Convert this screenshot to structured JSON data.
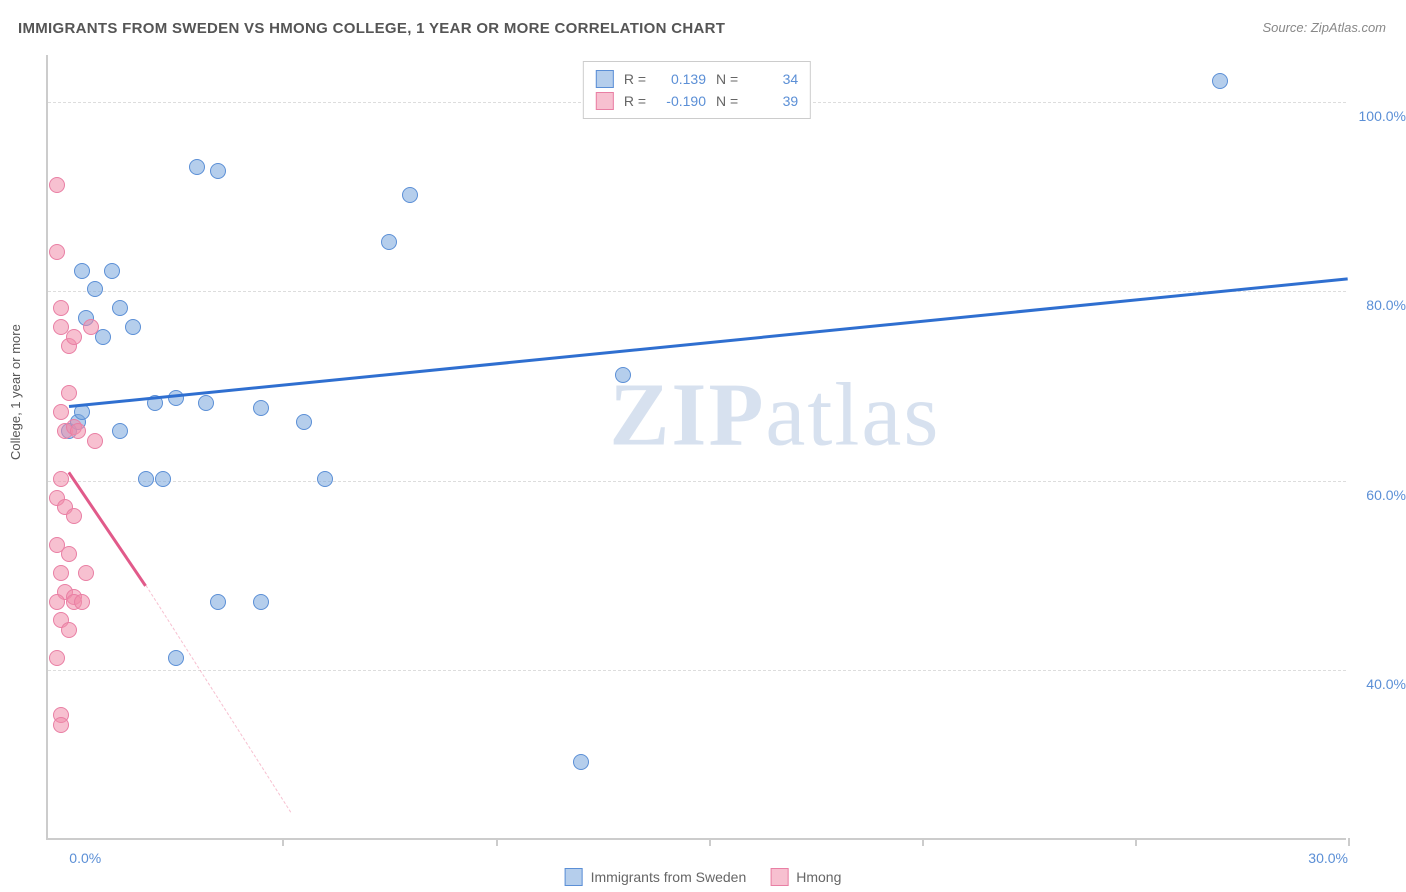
{
  "title": "IMMIGRANTS FROM SWEDEN VS HMONG COLLEGE, 1 YEAR OR MORE CORRELATION CHART",
  "source": "Source: ZipAtlas.com",
  "ylabel": "College, 1 year or more",
  "watermark_bold": "ZIP",
  "watermark_rest": "atlas",
  "chart": {
    "type": "scatter",
    "background_color": "#ffffff",
    "grid_color": "#dddddd",
    "axis_color": "#cccccc",
    "tick_label_color": "#5b8fd6",
    "xlim": [
      0,
      30
    ],
    "ylim": [
      25,
      105
    ],
    "x_visible_min": -0.5,
    "y_visible_min": 22,
    "y_visible_max": 105,
    "x_tick_step": 5,
    "y_ticks": [
      40,
      60,
      80,
      100
    ],
    "x_tick_labels": {
      "0": "0.0%",
      "30": "30.0%"
    },
    "y_tick_labels": {
      "40": "40.0%",
      "60": "60.0%",
      "80": "80.0%",
      "100": "100.0%"
    },
    "point_radius": 8,
    "point_border_width": 1,
    "series": [
      {
        "name": "Immigrants from Sweden",
        "fill": "rgba(120,165,220,0.55)",
        "stroke": "#5b8fd6",
        "line_color": "#2f6fd0",
        "line_width": 2.5,
        "R": "0.139",
        "N": "34",
        "trend": {
          "x1": 0,
          "y1": 68,
          "x2": 30,
          "y2": 81.5
        },
        "trend_dash": null,
        "points": [
          [
            0.0,
            65
          ],
          [
            0.2,
            66
          ],
          [
            0.3,
            82
          ],
          [
            0.3,
            67
          ],
          [
            0.4,
            77
          ],
          [
            0.6,
            80
          ],
          [
            0.8,
            75
          ],
          [
            1.0,
            82
          ],
          [
            1.2,
            78
          ],
          [
            1.2,
            65
          ],
          [
            1.5,
            76
          ],
          [
            3.0,
            93
          ],
          [
            3.5,
            92.5
          ],
          [
            2.0,
            68
          ],
          [
            2.5,
            68.5
          ],
          [
            3.2,
            68
          ],
          [
            1.8,
            60
          ],
          [
            2.2,
            60
          ],
          [
            3.5,
            47
          ],
          [
            4.5,
            47
          ],
          [
            2.5,
            41
          ],
          [
            4.5,
            67.5
          ],
          [
            5.5,
            66
          ],
          [
            6.0,
            60
          ],
          [
            7.5,
            85
          ],
          [
            8.0,
            90
          ],
          [
            12.0,
            30
          ],
          [
            13,
            71
          ],
          [
            27,
            102
          ]
        ]
      },
      {
        "name": "Hmong",
        "fill": "rgba(240,140,170,0.55)",
        "stroke": "#e97fa4",
        "line_color": "#e15a8a",
        "line_width": 2.5,
        "R": "-0.190",
        "N": "39",
        "trend": {
          "x1": 0,
          "y1": 61,
          "x2": 1.8,
          "y2": 49
        },
        "trend_dash": {
          "x1": 1.8,
          "y1": 49,
          "x2": 5.2,
          "y2": 25
        },
        "points": [
          [
            -0.3,
            91
          ],
          [
            -0.3,
            84
          ],
          [
            -0.2,
            78
          ],
          [
            -0.2,
            76
          ],
          [
            0.0,
            74
          ],
          [
            0.1,
            75
          ],
          [
            0.0,
            69
          ],
          [
            -0.2,
            67
          ],
          [
            -0.1,
            65
          ],
          [
            0.1,
            65.5
          ],
          [
            0.2,
            65
          ],
          [
            -0.2,
            60
          ],
          [
            -0.3,
            58
          ],
          [
            -0.1,
            57
          ],
          [
            0.1,
            56
          ],
          [
            -0.3,
            53
          ],
          [
            0.0,
            52
          ],
          [
            -0.2,
            50
          ],
          [
            -0.1,
            48
          ],
          [
            0.1,
            47.5
          ],
          [
            -0.3,
            47
          ],
          [
            0.1,
            47
          ],
          [
            -0.2,
            45
          ],
          [
            0.0,
            44
          ],
          [
            -0.3,
            41
          ],
          [
            -0.2,
            35
          ],
          [
            -0.2,
            34
          ],
          [
            0.3,
            47
          ],
          [
            0.4,
            50
          ],
          [
            0.5,
            76
          ],
          [
            0.6,
            64
          ]
        ]
      }
    ]
  },
  "legend_top_labels": {
    "R": "R =",
    "N": "N ="
  },
  "legend_bottom": [
    {
      "label": "Immigrants from Sweden",
      "fill": "rgba(120,165,220,0.55)",
      "stroke": "#5b8fd6"
    },
    {
      "label": "Hmong",
      "fill": "rgba(240,140,170,0.55)",
      "stroke": "#e97fa4"
    }
  ]
}
